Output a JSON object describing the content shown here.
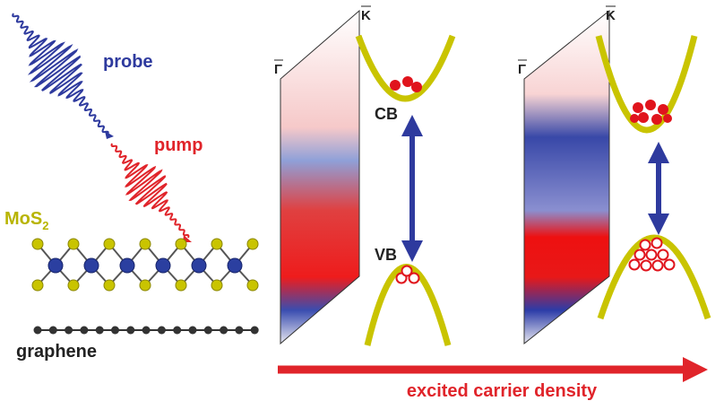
{
  "labels": {
    "probe": "probe",
    "pump": "pump",
    "material": {
      "main": "MoS",
      "subscript": "2"
    },
    "substrate": "graphene"
  },
  "panels": [
    {
      "gamma": "Γ",
      "k": "K",
      "cb": "CB",
      "vb": "VB"
    },
    {
      "gamma": "Γ",
      "k": "K"
    }
  ],
  "axis_label": "excited carrier density"
}
